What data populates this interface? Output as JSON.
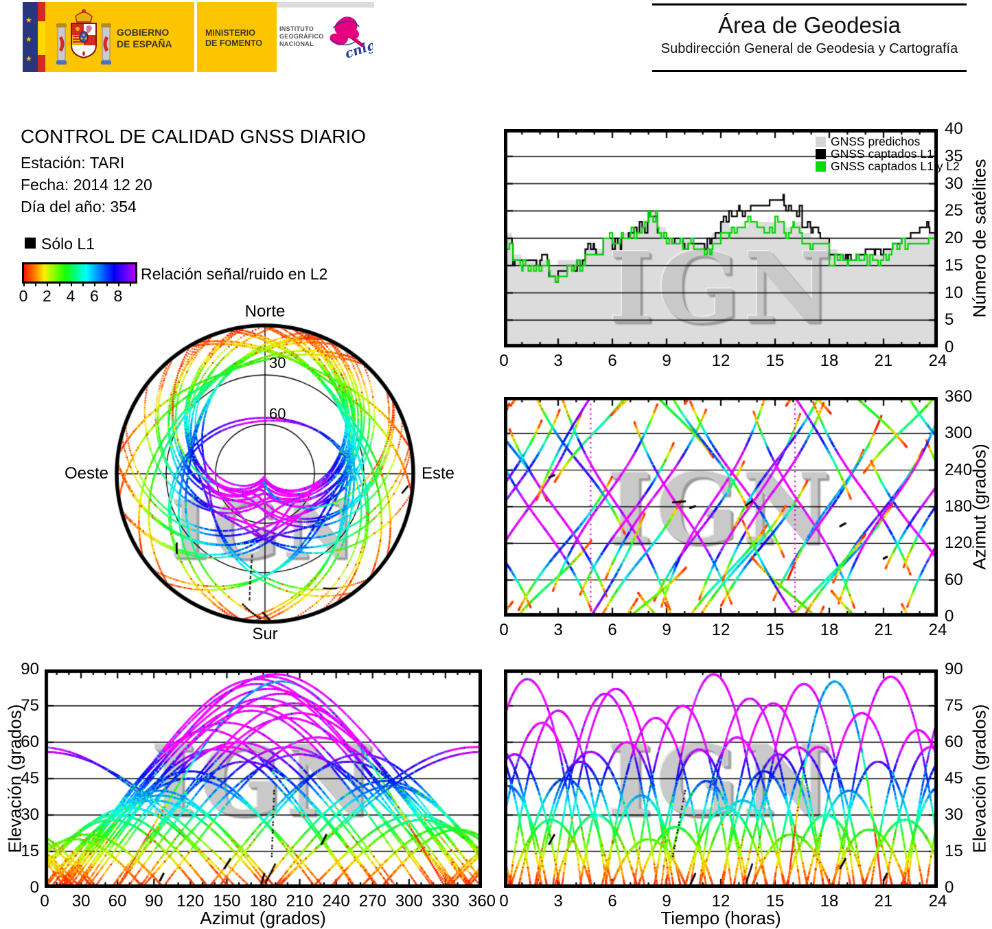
{
  "header": {
    "gobierno": {
      "line1": "GOBIERNO",
      "line2": "DE ESPAÑA"
    },
    "ministerio": {
      "line1": "MINISTERIO",
      "line2": "DE FOMENTO"
    },
    "instituto": {
      "line1": "INSTITUTO",
      "line2": "GEOGRÁFICO",
      "line3": "NACIONAL"
    },
    "cnig_text": "cnig",
    "area_title": "Área de Geodesia",
    "area_subtitle": "Subdirección General de Geodesia y Cartografía"
  },
  "info": {
    "title": "CONTROL DE CALIDAD GNSS DIARIO",
    "station": "Estación: TARI",
    "date": "Fecha: 2014 12 20",
    "day_of_year": "Día del año: 354",
    "solo_l1_label": "Sólo L1",
    "colorbar_label": "Relación señal/ruido en L2",
    "colorbar_tick_labels": [
      "0",
      "2",
      "4",
      "6",
      "8"
    ],
    "colorbar_value_max": 9.4
  },
  "watermark": "IGN",
  "colors": {
    "predicted_gray": "#dcdcdc",
    "legend_gray": "#d5d5d5",
    "captured_l1_black": "#000000",
    "captured_l1l2_green": "#00dd00",
    "magenta_high_snr": "#ff00ff",
    "gov_yellow": "#fdc400",
    "eu_navy": "#2a3580",
    "flag_red": "#d52b1e",
    "flag_yellow": "#ffd900",
    "cnig_pink": "#e5007d",
    "cnig_blue": "#2a3e9e",
    "colormap_stops": [
      [
        0.0,
        "#ff1500"
      ],
      [
        0.85,
        "#ff7700"
      ],
      [
        1.7,
        "#ffee00"
      ],
      [
        2.6,
        "#8cff00"
      ],
      [
        3.5,
        "#16ff00"
      ],
      [
        4.4,
        "#00ff8c"
      ],
      [
        5.3,
        "#00ffff"
      ],
      [
        6.1,
        "#00a0ff"
      ],
      [
        6.9,
        "#0040ff"
      ],
      [
        7.6,
        "#0000f0"
      ],
      [
        8.3,
        "#5a00ff"
      ],
      [
        9.0,
        "#b400ff"
      ],
      [
        9.4,
        "#ff00ff"
      ]
    ]
  },
  "chart_data": {
    "satellite_count": {
      "type": "line",
      "ylabel": "Número de satélites",
      "xlim": [
        0,
        24
      ],
      "ylim": [
        0,
        40
      ],
      "xticks": [
        0,
        3,
        6,
        9,
        12,
        15,
        18,
        21,
        24
      ],
      "yticks": [
        0,
        5,
        10,
        15,
        20,
        25,
        30,
        35,
        40
      ],
      "gridlines": [
        5,
        10,
        15,
        20,
        25,
        30,
        35
      ],
      "legend": [
        {
          "label": "GNSS predichos",
          "color": "#d5d5d5"
        },
        {
          "label": "GNSS captados L1",
          "color": "#000000"
        },
        {
          "label": "GNSS captados L1 y L2",
          "color": "#00dd00"
        }
      ],
      "t_step_hours": 0.5,
      "predicted": [
        21,
        17,
        16,
        16,
        16,
        15,
        16,
        16,
        16,
        18,
        18,
        20,
        20,
        21,
        22,
        23,
        25,
        22,
        20,
        20,
        20,
        19,
        19,
        21,
        23,
        22,
        22,
        23,
        23,
        23,
        23,
        22,
        23,
        21,
        20,
        20,
        18,
        17,
        16,
        17,
        17,
        17,
        18,
        19,
        20,
        20,
        20,
        21,
        22
      ],
      "captados_l1": [
        20,
        16,
        16,
        15,
        16,
        13,
        14,
        15,
        15,
        18,
        17,
        20,
        19,
        21,
        21,
        22,
        24,
        21,
        20,
        20,
        19,
        19,
        19,
        20,
        24,
        24,
        25,
        26,
        26,
        26,
        27,
        25,
        25,
        22,
        21,
        20,
        17,
        17,
        16,
        17,
        18,
        17,
        18,
        19,
        20,
        21,
        22,
        21,
        23
      ],
      "captados_l1_l2": [
        19,
        16,
        15,
        15,
        15,
        13,
        13,
        15,
        15,
        17,
        17,
        20,
        19,
        20,
        21,
        22,
        24,
        21,
        19,
        19,
        19,
        18,
        18,
        19,
        21,
        22,
        22,
        23,
        22,
        22,
        23,
        21,
        22,
        19,
        19,
        19,
        16,
        16,
        15,
        16,
        16,
        16,
        17,
        18,
        19,
        19,
        19,
        20,
        20
      ]
    },
    "azimuth_vs_time": {
      "type": "scatter",
      "ylabel": "Azimut (grados)",
      "xlim": [
        0,
        24
      ],
      "ylim": [
        0,
        360
      ],
      "xticks": [
        0,
        3,
        6,
        9,
        12,
        15,
        18,
        21,
        24
      ],
      "yticks": [
        0,
        60,
        120,
        180,
        240,
        300,
        360
      ],
      "gridlines": [
        60,
        120,
        180,
        240,
        300
      ]
    },
    "elevation_vs_azimuth": {
      "type": "scatter",
      "xlabel": "Azimut (grados)",
      "ylabel": "Elevación (grados)",
      "xlim": [
        0,
        360
      ],
      "ylim": [
        0,
        90
      ],
      "xticks": [
        0,
        30,
        60,
        90,
        120,
        150,
        180,
        210,
        240,
        270,
        300,
        330,
        360
      ],
      "yticks": [
        0,
        15,
        30,
        45,
        60,
        75,
        90
      ],
      "gridlines": [
        15,
        30,
        45,
        60,
        75
      ]
    },
    "elevation_vs_time": {
      "type": "scatter",
      "xlabel": "Tiempo (horas)",
      "ylabel": "Elevación (grados)",
      "xlim": [
        0,
        24
      ],
      "ylim": [
        0,
        90
      ],
      "xticks": [
        0,
        3,
        6,
        9,
        12,
        15,
        18,
        21,
        24
      ],
      "yticks": [
        0,
        15,
        30,
        45,
        60,
        75,
        90
      ],
      "gridlines": [
        15,
        30,
        45,
        60,
        75
      ]
    },
    "skyplot": {
      "type": "polar-scatter",
      "labels": {
        "top": "Norte",
        "bottom": "Sur",
        "left": "Oeste",
        "right": "Este"
      },
      "ring_labels": [
        "30",
        "60"
      ],
      "elevation_rings": [
        30,
        60
      ]
    },
    "passes_format": "[t_peak_h, duration_h, az_peak_deg, az_sweep_deg, el_max_deg, az_skew_deg, snr_bias]",
    "passes": [
      [
        1.3,
        6.0,
        175,
        120,
        86,
        40,
        0
      ],
      [
        2.1,
        5.5,
        150,
        -110,
        68,
        -30,
        0
      ],
      [
        0.6,
        5.0,
        210,
        100,
        55,
        30,
        0
      ],
      [
        3.4,
        5.2,
        120,
        90,
        45,
        20,
        0
      ],
      [
        2.6,
        4.5,
        55,
        60,
        28,
        10,
        0
      ],
      [
        4.2,
        5.0,
        250,
        -90,
        52,
        -25,
        0
      ],
      [
        5.1,
        4.6,
        305,
        70,
        30,
        15,
        0
      ],
      [
        6.2,
        6.0,
        185,
        -130,
        82,
        -45,
        0
      ],
      [
        6.8,
        5.2,
        160,
        100,
        60,
        25,
        0
      ],
      [
        7.6,
        4.4,
        95,
        80,
        38,
        15,
        0
      ],
      [
        8.4,
        5.6,
        200,
        110,
        70,
        30,
        0
      ],
      [
        9.5,
        4.2,
        330,
        -60,
        25,
        -10,
        0
      ],
      [
        9.9,
        5.4,
        170,
        -115,
        75,
        -35,
        0
      ],
      [
        10.8,
        5.0,
        140,
        95,
        57,
        20,
        0
      ],
      [
        11.6,
        5.8,
        190,
        125,
        88,
        50,
        0
      ],
      [
        12.3,
        4.6,
        70,
        70,
        33,
        12,
        0
      ],
      [
        12.9,
        5.2,
        225,
        -100,
        62,
        -28,
        0
      ],
      [
        13.6,
        5.6,
        180,
        115,
        78,
        38,
        0
      ],
      [
        14.4,
        4.8,
        120,
        85,
        48,
        18,
        0
      ],
      [
        15.2,
        5.0,
        260,
        95,
        55,
        22,
        0
      ],
      [
        15.9,
        4.4,
        35,
        -55,
        22,
        -8,
        0
      ],
      [
        16.6,
        5.6,
        175,
        -120,
        84,
        -42,
        0
      ],
      [
        17.4,
        5.0,
        150,
        100,
        58,
        24,
        0
      ],
      [
        18.3,
        5.2,
        195,
        105,
        85,
        30,
        -3.2
      ],
      [
        19.1,
        4.8,
        95,
        75,
        40,
        15,
        0
      ],
      [
        19.8,
        5.4,
        210,
        -110,
        72,
        -32,
        0
      ],
      [
        20.7,
        5.0,
        165,
        90,
        52,
        20,
        0
      ],
      [
        21.4,
        5.8,
        185,
        120,
        87,
        45,
        0
      ],
      [
        22.2,
        4.6,
        310,
        65,
        28,
        10,
        0
      ],
      [
        22.9,
        5.2,
        135,
        -95,
        65,
        -26,
        0
      ],
      [
        23.6,
        5.0,
        200,
        100,
        58,
        22,
        0
      ],
      [
        0.2,
        4.4,
        285,
        -80,
        42,
        -16,
        0
      ],
      [
        5.6,
        5.8,
        195,
        118,
        80,
        36,
        0
      ],
      [
        3.0,
        5.4,
        170,
        -108,
        73,
        -30,
        0
      ],
      [
        17.8,
        4.4,
        60,
        65,
        30,
        10,
        0
      ],
      [
        11.2,
        4.6,
        280,
        -85,
        44,
        -18,
        0
      ],
      [
        14.9,
        5.6,
        205,
        112,
        76,
        34,
        0
      ],
      [
        8.0,
        4.2,
        25,
        50,
        20,
        6,
        0
      ],
      [
        20.2,
        4.2,
        340,
        -55,
        24,
        -8,
        0
      ],
      [
        13.2,
        4.8,
        90,
        78,
        36,
        14,
        0
      ],
      [
        4.8,
        6.0,
        0,
        140,
        56,
        30,
        0
      ],
      [
        16.2,
        6.0,
        355,
        -135,
        58,
        -28,
        0
      ]
    ],
    "l1_only_segments_format": "[t0_h, t1_h, az0_deg, az1_deg, el0_deg, el1_deg]",
    "l1_only_segments": [
      [
        9.35,
        10.05,
        187,
        189,
        13,
        41
      ],
      [
        13.4,
        13.75,
        182,
        190,
        2,
        10
      ],
      [
        2.5,
        2.8,
        228,
        232,
        18,
        22
      ],
      [
        18.6,
        18.9,
        148,
        153,
        8,
        12
      ],
      [
        10.3,
        10.6,
        178,
        181,
        1,
        6
      ],
      [
        21.0,
        21.2,
        95,
        98,
        3,
        6
      ]
    ]
  }
}
